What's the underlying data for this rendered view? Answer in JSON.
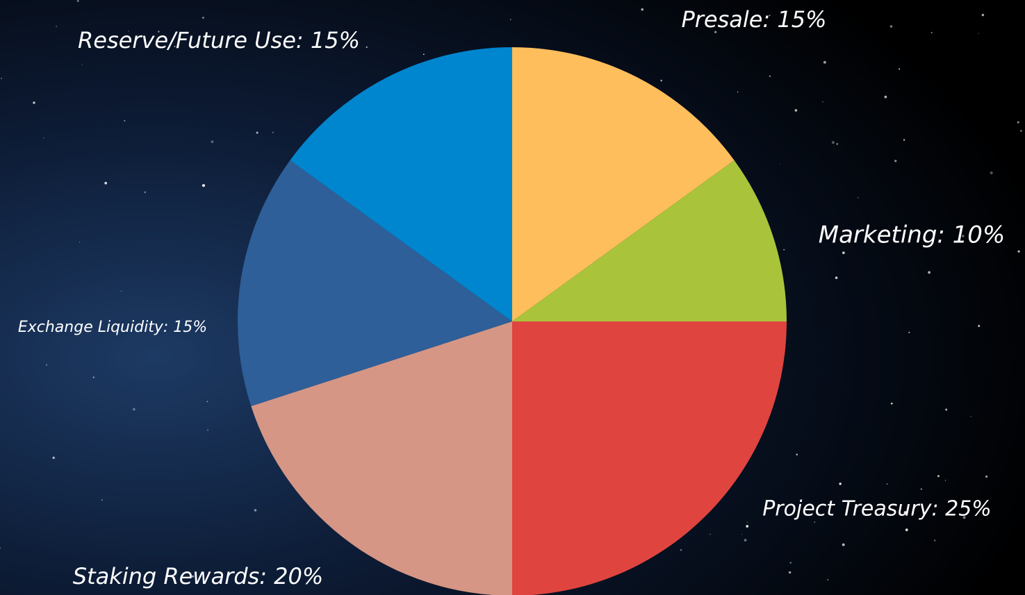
{
  "chart_data": {
    "type": "pie",
    "values": [
      15,
      10,
      25,
      20,
      15,
      15
    ],
    "value_labels": [
      "Presale: 15%",
      "Marketing: 10%",
      "Project Treasury: 25%",
      "Staking Rewards: 20%",
      "Exchange Liquidity: 15%",
      "Reserve/Future Use: 15%"
    ],
    "colors": [
      "#ffbe5c",
      "#a9c43a",
      "#e0443f",
      "#d69685",
      "#2f5f98",
      "#0086cf"
    ]
  }
}
